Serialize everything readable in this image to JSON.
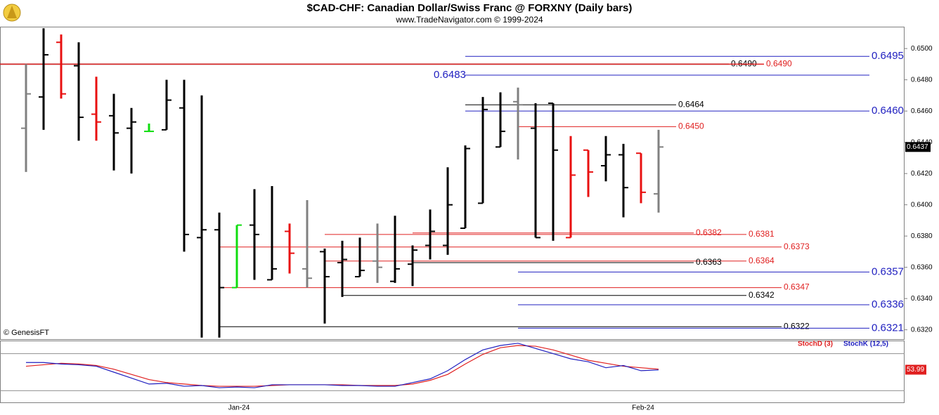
{
  "chart_data": {
    "type": "ohlc",
    "title": "$CAD-CHF:  Canadian Dollar/Swiss Franc @ FORXNY  (Daily bars)",
    "subtitle": "www.TradeNavigator.com © 1999-2024",
    "source_note": "© GenesisFT",
    "categories": [
      null,
      null,
      null,
      null,
      null,
      null,
      null,
      null,
      null,
      null,
      null,
      null,
      "Jan-24",
      null,
      null,
      null,
      null,
      null,
      null,
      null,
      null,
      null,
      null,
      null,
      null,
      null,
      null,
      null,
      null,
      null,
      null,
      null,
      null,
      null,
      null,
      "Feb-24",
      null
    ],
    "open": [
      0.6449,
      0.6469,
      0.6504,
      0.6489,
      0.6458,
      0.6457,
      0.6449,
      0.6447,
      0.6448,
      0.6462,
      0.6379,
      0.6384,
      0.6347,
      0.6387,
      0.6352,
      0.6383,
      0.6359,
      0.637,
      0.6363,
      0.6354,
      0.6364,
      0.6351,
      0.6362,
      0.6374,
      0.6374,
      0.6385,
      0.6401,
      0.6437,
      0.6466,
      0.6449,
      0.6465,
      0.6379,
      0.6435,
      0.6425,
      0.6432,
      0.6433,
      0.6407
    ],
    "high": [
      0.649,
      0.6513,
      0.6509,
      0.6504,
      0.6482,
      0.6471,
      0.6462,
      0.6452,
      0.648,
      0.648,
      0.647,
      0.6395,
      0.6387,
      0.641,
      0.6412,
      0.6388,
      0.6403,
      0.6372,
      0.6377,
      0.6379,
      0.6388,
      0.6393,
      0.6374,
      0.6397,
      0.6424,
      0.6438,
      0.6469,
      0.6472,
      0.6475,
      0.6465,
      0.6465,
      0.6444,
      0.6435,
      0.6444,
      0.6439,
      0.6433,
      0.6448
    ],
    "low": [
      0.6421,
      0.6448,
      0.6468,
      0.6441,
      0.6441,
      0.6422,
      0.642,
      0.6447,
      0.6448,
      0.637,
      0.6315,
      0.6315,
      0.6347,
      0.6352,
      0.6352,
      0.6356,
      0.6347,
      0.6324,
      0.6341,
      0.6354,
      0.635,
      0.635,
      0.6348,
      0.6365,
      0.6368,
      0.6385,
      0.6401,
      0.6437,
      0.6429,
      0.6379,
      0.6377,
      0.6379,
      0.6405,
      0.6415,
      0.6392,
      0.6401,
      0.6395
    ],
    "close": [
      0.6471,
      0.6496,
      0.6471,
      0.6456,
      0.6453,
      0.6446,
      0.6453,
      0.6447,
      0.6467,
      0.6381,
      0.6384,
      0.6347,
      0.6387,
      0.6381,
      0.6359,
      0.6369,
      0.6353,
      0.6354,
      0.6365,
      0.6358,
      0.636,
      0.6359,
      0.6371,
      0.6383,
      0.64,
      0.6436,
      0.6461,
      0.6447,
      0.6464,
      0.6379,
      0.6435,
      0.6419,
      0.6421,
      0.6432,
      0.6411,
      0.6408,
      0.6437
    ],
    "bar_colors": [
      "#808080",
      "#000000",
      "#e81010",
      "#000000",
      "#e81010",
      "#000000",
      "#000000",
      "#10dd10",
      "#000000",
      "#000000",
      "#000000",
      "#000000",
      "#10dd10",
      "#000000",
      "#000000",
      "#e81010",
      "#808080",
      "#000000",
      "#000000",
      "#000000",
      "#808080",
      "#000000",
      "#000000",
      "#000000",
      "#000000",
      "#000000",
      "#000000",
      "#000000",
      "#808080",
      "#000000",
      "#000000",
      "#e81010",
      "#e81010",
      "#000000",
      "#000000",
      "#e81010",
      "#808080"
    ],
    "ylim": [
      0.6514,
      0.6314
    ],
    "yticks": [
      {
        "value": 0.632,
        "label": "0.6320"
      },
      {
        "value": 0.634,
        "label": "0.6340"
      },
      {
        "value": 0.636,
        "label": "0.6360"
      },
      {
        "value": 0.638,
        "label": "0.6380"
      },
      {
        "value": 0.64,
        "label": "0.6400"
      },
      {
        "value": 0.642,
        "label": "0.6420"
      },
      {
        "value": 0.644,
        "label": "0.6440"
      },
      {
        "value": 0.646,
        "label": "0.6460"
      },
      {
        "value": 0.648,
        "label": "0.6480"
      },
      {
        "value": 0.65,
        "label": "0.6500"
      }
    ],
    "last_price": {
      "value": 0.6437,
      "label": "0.6437"
    },
    "levels": [
      {
        "value": 0.6495,
        "label": "0.6495",
        "color": "#2020c0"
      },
      {
        "value": 0.649,
        "label": "0.6490",
        "color": "#000000"
      },
      {
        "value": 0.649,
        "label": "0.6490",
        "color": "#e02020"
      },
      {
        "value": 0.6483,
        "label": "0.6483",
        "color": "#2020c0"
      },
      {
        "value": 0.6464,
        "label": "0.6464",
        "color": "#000000"
      },
      {
        "value": 0.646,
        "label": "0.6460",
        "color": "#2020c0"
      },
      {
        "value": 0.645,
        "label": "0.6450",
        "color": "#e02020"
      },
      {
        "value": 0.6382,
        "label": "0.6382",
        "color": "#e02020"
      },
      {
        "value": 0.6381,
        "label": "0.6381",
        "color": "#e02020"
      },
      {
        "value": 0.6373,
        "label": "0.6373",
        "color": "#e02020"
      },
      {
        "value": 0.6364,
        "label": "0.6364",
        "color": "#e02020"
      },
      {
        "value": 0.6363,
        "label": "0.6363",
        "color": "#000000"
      },
      {
        "value": 0.6357,
        "label": "0.6357",
        "color": "#2020c0"
      },
      {
        "value": 0.6347,
        "label": "0.6347",
        "color": "#e02020"
      },
      {
        "value": 0.6342,
        "label": "0.6342",
        "color": "#000000"
      },
      {
        "value": 0.6336,
        "label": "0.6336",
        "color": "#2020c0"
      },
      {
        "value": 0.6322,
        "label": "0.6322",
        "color": "#000000"
      },
      {
        "value": 0.6321,
        "label": "0.6321",
        "color": "#2020c0"
      }
    ],
    "indicator": {
      "type": "line",
      "ylim": [
        0,
        100
      ],
      "reference_lines": [
        20,
        80
      ],
      "last_value": {
        "value": 53.99,
        "label": "53.99"
      },
      "series": [
        {
          "name": "StochD (3)",
          "color": "#e02020",
          "values": [
            59.6,
            62.0,
            64.4,
            63.2,
            60.8,
            54.8,
            46.4,
            38.0,
            33.2,
            30.8,
            28.4,
            27.2,
            27.2,
            27.2,
            28.4,
            29.6,
            29.6,
            29.6,
            29.6,
            28.4,
            28.4,
            28.4,
            30.8,
            36.8,
            46.4,
            63.2,
            78.8,
            89.6,
            93.2,
            92.0,
            86.0,
            77.6,
            69.2,
            64.4,
            59.6,
            57.2,
            54.8
          ]
        },
        {
          "name": "StochK (12,5)",
          "color": "#2020c0",
          "values": [
            65.6,
            65.6,
            63.2,
            62.0,
            59.6,
            50.0,
            40.4,
            30.8,
            32.0,
            27.2,
            28.4,
            24.8,
            26.0,
            24.8,
            29.6,
            29.6,
            29.6,
            29.6,
            28.4,
            28.4,
            27.2,
            27.2,
            33.2,
            39.2,
            52.4,
            70.4,
            86.0,
            93.2,
            96.8,
            88.4,
            80.0,
            71.6,
            66.8,
            57.2,
            60.8,
            52.4,
            53.6
          ]
        }
      ]
    }
  }
}
